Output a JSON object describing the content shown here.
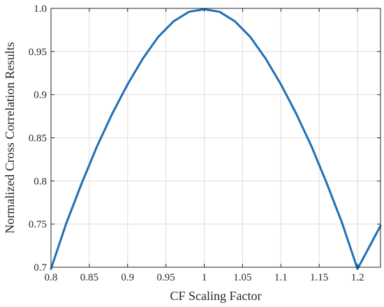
{
  "chart_data": {
    "type": "line",
    "title": "",
    "xlabel": "CF Scaling Factor",
    "ylabel": "Normalized Cross Correlation Results",
    "xlim": [
      0.8,
      1.23
    ],
    "ylim": [
      0.7,
      1.0
    ],
    "xticks": [
      0.8,
      0.85,
      0.9,
      0.95,
      1.0,
      1.05,
      1.1,
      1.15,
      1.2
    ],
    "xtick_labels": [
      "0.8",
      "0.85",
      "0.9",
      "0.95",
      "1",
      "1.05",
      "1.1",
      "1.15",
      "1.2"
    ],
    "yticks": [
      0.7,
      0.75,
      0.8,
      0.85,
      0.9,
      0.95,
      1.0
    ],
    "ytick_labels": [
      "0.7",
      "0.75",
      "0.8",
      "0.85",
      "0.9",
      "0.95",
      "1.0"
    ],
    "grid": true,
    "series": [
      {
        "color": "#1f6fb5",
        "x": [
          0.8,
          0.82,
          0.84,
          0.86,
          0.88,
          0.9,
          0.92,
          0.94,
          0.96,
          0.98,
          1.0,
          1.02,
          1.04,
          1.06,
          1.08,
          1.1,
          1.12,
          1.14,
          1.16,
          1.18,
          1.2,
          1.23
        ],
        "y": [
          0.698,
          0.751,
          0.797,
          0.84,
          0.878,
          0.912,
          0.942,
          0.967,
          0.985,
          0.996,
          0.999,
          0.996,
          0.985,
          0.967,
          0.942,
          0.912,
          0.878,
          0.84,
          0.797,
          0.751,
          0.698,
          0.748
        ]
      }
    ]
  }
}
